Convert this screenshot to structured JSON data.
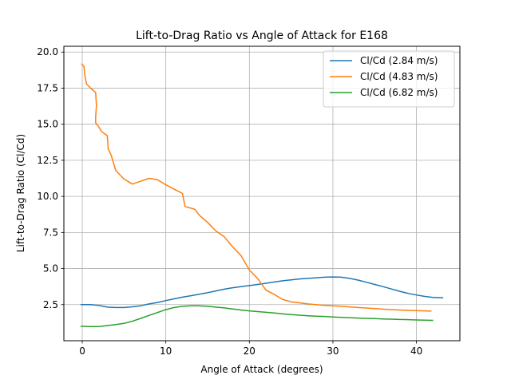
{
  "chart_data": {
    "type": "line",
    "title": "Lift-to-Drag Ratio vs Angle of Attack for E168",
    "xlabel": "Angle of Attack (degrees)",
    "ylabel": "Lift-to-Drag Ratio (Cl/Cd)",
    "xlim": [
      -2.2,
      45.2
    ],
    "ylim": [
      0,
      20.4
    ],
    "xticks": [
      0,
      10,
      20,
      30,
      40
    ],
    "xtick_labels": [
      "0",
      "10",
      "20",
      "30",
      "40"
    ],
    "yticks": [
      2.5,
      5.0,
      7.5,
      10.0,
      12.5,
      15.0,
      17.5,
      20.0
    ],
    "ytick_labels": [
      "2.5",
      "5.0",
      "7.5",
      "10.0",
      "12.5",
      "15.0",
      "17.5",
      "20.0"
    ],
    "grid": true,
    "legend_position": "upper-right",
    "series": [
      {
        "name": "Cl/Cd (2.84 m/s)",
        "color": "#1f77b4",
        "x": [
          -0.2,
          1,
          2,
          3,
          4,
          5,
          6,
          7,
          8,
          9,
          10,
          11,
          12,
          13,
          14,
          15,
          16,
          17,
          18,
          19,
          20,
          21,
          22,
          23,
          24,
          25,
          26,
          27,
          28,
          29,
          30,
          31,
          32,
          33,
          34,
          35,
          36,
          37,
          38,
          39,
          40,
          41,
          42,
          43.2
        ],
        "y": [
          2.5,
          2.5,
          2.45,
          2.33,
          2.3,
          2.3,
          2.35,
          2.42,
          2.55,
          2.65,
          2.78,
          2.9,
          3.02,
          3.12,
          3.22,
          3.33,
          3.45,
          3.57,
          3.67,
          3.75,
          3.82,
          3.9,
          3.98,
          4.07,
          4.15,
          4.22,
          4.28,
          4.32,
          4.36,
          4.4,
          4.42,
          4.4,
          4.32,
          4.2,
          4.05,
          3.9,
          3.75,
          3.58,
          3.42,
          3.28,
          3.17,
          3.07,
          3.0,
          2.98
        ]
      },
      {
        "name": "Cl/Cd (4.83 m/s)",
        "color": "#ff7f0e",
        "x": [
          -0.1,
          0.2,
          0.3,
          0.5,
          1.0,
          1.6,
          1.7,
          1.6,
          1.6,
          2.0,
          2.3,
          3.0,
          3.1,
          3.5,
          4.0,
          5.0,
          6.0,
          7.0,
          8.0,
          9.0,
          10.0,
          11.0,
          12.0,
          12.3,
          13.5,
          14.0,
          15.0,
          16.0,
          17.0,
          18.0,
          19.0,
          19.5,
          20.0,
          21.0,
          21.5,
          22.0,
          23.0,
          24.0,
          25.0,
          27.0,
          29.0,
          31.0,
          33.0,
          35.0,
          37.0,
          39.0,
          41.0,
          41.8
        ],
        "y": [
          19.2,
          19.0,
          18.4,
          17.8,
          17.5,
          17.2,
          16.3,
          15.5,
          15.1,
          14.8,
          14.5,
          14.2,
          13.3,
          12.8,
          11.8,
          11.2,
          10.85,
          11.05,
          11.25,
          11.15,
          10.8,
          10.5,
          10.2,
          9.3,
          9.1,
          8.7,
          8.2,
          7.6,
          7.2,
          6.5,
          5.9,
          5.4,
          4.9,
          4.3,
          3.9,
          3.5,
          3.2,
          2.85,
          2.7,
          2.55,
          2.45,
          2.38,
          2.3,
          2.22,
          2.15,
          2.1,
          2.07,
          2.05
        ]
      },
      {
        "name": "Cl/Cd (6.82 m/s)",
        "color": "#2ca02c",
        "x": [
          -0.2,
          1,
          2,
          3,
          4,
          5,
          6,
          7,
          8,
          9,
          10,
          11,
          12,
          13,
          14,
          15,
          16,
          17,
          18,
          19,
          20,
          21,
          22,
          23,
          24,
          25,
          26,
          27,
          28,
          29,
          30,
          31,
          32,
          33,
          34,
          35,
          36,
          37,
          38,
          39,
          40,
          41,
          42
        ],
        "y": [
          1.0,
          0.98,
          0.98,
          1.05,
          1.12,
          1.2,
          1.35,
          1.55,
          1.75,
          1.95,
          2.15,
          2.3,
          2.38,
          2.42,
          2.42,
          2.38,
          2.33,
          2.27,
          2.2,
          2.13,
          2.07,
          2.02,
          1.97,
          1.92,
          1.86,
          1.81,
          1.77,
          1.73,
          1.7,
          1.68,
          1.65,
          1.62,
          1.6,
          1.57,
          1.55,
          1.53,
          1.51,
          1.49,
          1.47,
          1.46,
          1.44,
          1.42,
          1.41
        ]
      }
    ]
  }
}
